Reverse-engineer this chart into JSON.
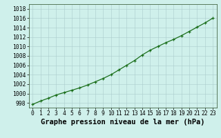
{
  "x": [
    0,
    1,
    2,
    3,
    4,
    5,
    6,
    7,
    8,
    9,
    10,
    11,
    12,
    13,
    14,
    15,
    16,
    17,
    18,
    19,
    20,
    21,
    22,
    23
  ],
  "y": [
    997.7,
    998.4,
    999.0,
    999.7,
    1000.2,
    1000.7,
    1001.2,
    1001.8,
    1002.5,
    1003.2,
    1004.0,
    1005.0,
    1006.0,
    1007.0,
    1008.2,
    1009.2,
    1010.0,
    1010.8,
    1011.5,
    1012.3,
    1013.2,
    1014.1,
    1015.0,
    1016.0
  ],
  "xlim_min": -0.5,
  "xlim_max": 23.5,
  "ylim_min": 997,
  "ylim_max": 1019,
  "yticks": [
    998,
    1000,
    1002,
    1004,
    1006,
    1008,
    1010,
    1012,
    1014,
    1016,
    1018
  ],
  "xticks": [
    0,
    1,
    2,
    3,
    4,
    5,
    6,
    7,
    8,
    9,
    10,
    11,
    12,
    13,
    14,
    15,
    16,
    17,
    18,
    19,
    20,
    21,
    22,
    23
  ],
  "line_color": "#1a6e1a",
  "marker": "+",
  "bg_color": "#cff0eb",
  "grid_color": "#aacccc",
  "xlabel": "Graphe pression niveau de la mer (hPa)",
  "xlabel_fontsize": 7.5,
  "tick_fontsize": 5.8,
  "line_width": 0.9,
  "marker_size": 3.5,
  "marker_edge_width": 0.9
}
